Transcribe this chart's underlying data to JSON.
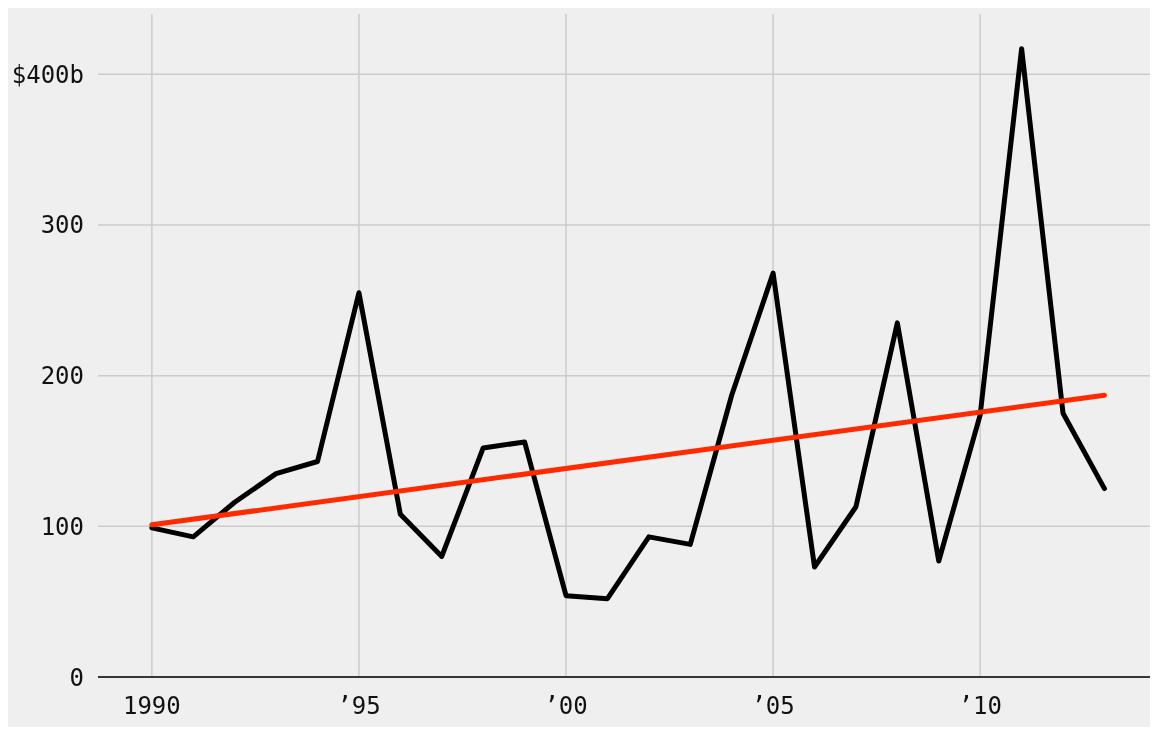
{
  "chart_data": {
    "type": "line",
    "xlim": [
      1988.7,
      2014.1
    ],
    "xticks": [
      {
        "value": 1990,
        "label": "1990"
      },
      {
        "value": 1995,
        "label": "’95"
      },
      {
        "value": 2000,
        "label": "’00"
      },
      {
        "value": 2005,
        "label": "’05"
      },
      {
        "value": 2010,
        "label": "’10"
      }
    ],
    "ylim": [
      0,
      440
    ],
    "yticks": [
      0,
      100,
      200,
      300,
      {
        "value": 400,
        "label": "$400b"
      }
    ],
    "grid": true,
    "marker": "none",
    "line_style": "solid",
    "series": [
      {
        "color": "#000000",
        "x": [
          1990,
          1991,
          1992,
          1993,
          1994,
          1995,
          1996,
          1997,
          1998,
          1999,
          2000,
          2001,
          2002,
          2003,
          2004,
          2005,
          2006,
          2007,
          2008,
          2009,
          2010,
          2011,
          2012,
          2013
        ],
        "values": [
          99,
          93,
          116,
          135,
          143,
          255,
          108,
          80,
          152,
          156,
          54,
          52,
          93,
          88,
          187,
          268,
          73,
          113,
          235,
          77,
          174,
          417,
          175,
          125
        ]
      },
      {
        "type": "line",
        "color": "#ff2a00",
        "x": [
          1990,
          2013
        ],
        "values": [
          101,
          187
        ]
      }
    ]
  }
}
